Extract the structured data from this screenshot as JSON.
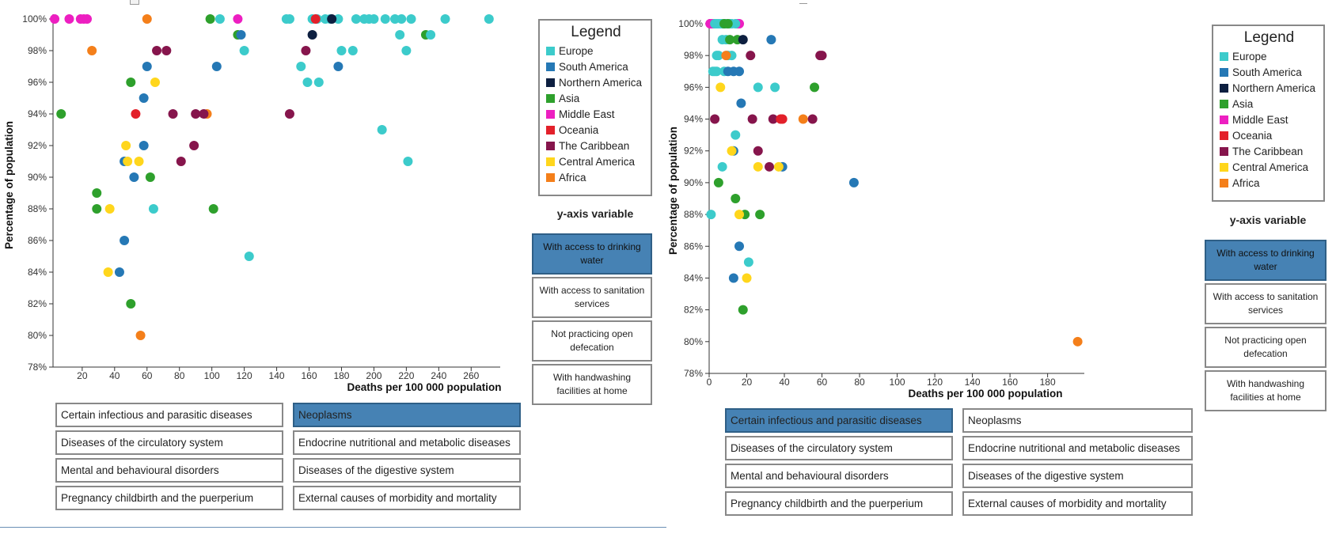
{
  "legend": {
    "title": "Legend",
    "regions": [
      {
        "name": "Europe",
        "color": "#3ccbcb"
      },
      {
        "name": "South America",
        "color": "#2578b5"
      },
      {
        "name": "Northern America",
        "color": "#0d1f40"
      },
      {
        "name": "Asia",
        "color": "#2ea02c"
      },
      {
        "name": "Middle East",
        "color": "#ed1fc1"
      },
      {
        "name": "Oceania",
        "color": "#e3202a"
      },
      {
        "name": "The Caribbean",
        "color": "#86154c"
      },
      {
        "name": "Central America",
        "color": "#ffd61c"
      },
      {
        "name": "Africa",
        "color": "#f47f1a"
      }
    ]
  },
  "yaxis_panel": {
    "heading": "y-axis variable",
    "options": [
      "With access to drinking water",
      "With access to sanitation services",
      "Not practicing open defecation",
      "With handwashing facilities at home"
    ]
  },
  "category_buttons": [
    "Certain infectious and parasitic diseases",
    "Neoplasms",
    "Diseases of the circulatory system",
    "Endocrine nutritional and metabolic diseases",
    "Mental and behavioural disorders",
    "Diseases of the digestive system",
    "Pregnancy childbirth and the puerperium",
    "External causes of morbidity and mortality"
  ],
  "panels": [
    {
      "selected_category": "Neoplasms",
      "selected_yvar": "With access to drinking water"
    },
    {
      "selected_category": "Certain infectious and parasitic diseases",
      "selected_yvar": "With access to drinking water"
    }
  ],
  "chart_data": [
    {
      "type": "scatter",
      "title": "",
      "xlabel": "Deaths per 100 000 population",
      "ylabel": "Percentage of population",
      "xlim": [
        2,
        275
      ],
      "ylim": [
        78,
        100
      ],
      "xticks": [
        20,
        40,
        60,
        80,
        100,
        120,
        140,
        160,
        180,
        200,
        220,
        240,
        260
      ],
      "yticks": [
        78,
        80,
        82,
        84,
        86,
        88,
        90,
        92,
        94,
        96,
        98,
        100
      ],
      "points": [
        {
          "region": "Middle East",
          "x": 3,
          "y": 100
        },
        {
          "region": "Middle East",
          "x": 12,
          "y": 100
        },
        {
          "region": "Middle East",
          "x": 19,
          "y": 100
        },
        {
          "region": "Middle East",
          "x": 21,
          "y": 100
        },
        {
          "region": "Middle East",
          "x": 23,
          "y": 100
        },
        {
          "region": "Middle East",
          "x": 116,
          "y": 100
        },
        {
          "region": "Africa",
          "x": 60,
          "y": 100
        },
        {
          "region": "Africa",
          "x": 26,
          "y": 98
        },
        {
          "region": "Africa",
          "x": 97,
          "y": 94
        },
        {
          "region": "Africa",
          "x": 56,
          "y": 80
        },
        {
          "region": "Asia",
          "x": 99,
          "y": 100
        },
        {
          "region": "Asia",
          "x": 116,
          "y": 99
        },
        {
          "region": "Asia",
          "x": 232,
          "y": 99
        },
        {
          "region": "Asia",
          "x": 50,
          "y": 96
        },
        {
          "region": "Asia",
          "x": 7,
          "y": 94
        },
        {
          "region": "Asia",
          "x": 62,
          "y": 90
        },
        {
          "region": "Asia",
          "x": 29,
          "y": 89
        },
        {
          "region": "Asia",
          "x": 29,
          "y": 88
        },
        {
          "region": "Asia",
          "x": 101,
          "y": 88
        },
        {
          "region": "Asia",
          "x": 50,
          "y": 82
        },
        {
          "region": "Europe",
          "x": 105,
          "y": 100
        },
        {
          "region": "Europe",
          "x": 146,
          "y": 100
        },
        {
          "region": "Europe",
          "x": 148,
          "y": 100
        },
        {
          "region": "Europe",
          "x": 162,
          "y": 100
        },
        {
          "region": "Europe",
          "x": 165,
          "y": 100
        },
        {
          "region": "Europe",
          "x": 170,
          "y": 100
        },
        {
          "region": "Europe",
          "x": 173,
          "y": 100
        },
        {
          "region": "Europe",
          "x": 178,
          "y": 100
        },
        {
          "region": "Europe",
          "x": 189,
          "y": 100
        },
        {
          "region": "Europe",
          "x": 194,
          "y": 100
        },
        {
          "region": "Europe",
          "x": 197,
          "y": 100
        },
        {
          "region": "Europe",
          "x": 200,
          "y": 100
        },
        {
          "region": "Europe",
          "x": 207,
          "y": 100
        },
        {
          "region": "Europe",
          "x": 213,
          "y": 100
        },
        {
          "region": "Europe",
          "x": 217,
          "y": 100
        },
        {
          "region": "Europe",
          "x": 223,
          "y": 100
        },
        {
          "region": "Europe",
          "x": 244,
          "y": 100
        },
        {
          "region": "Europe",
          "x": 271,
          "y": 100
        },
        {
          "region": "Europe",
          "x": 216,
          "y": 99
        },
        {
          "region": "Europe",
          "x": 235,
          "y": 99
        },
        {
          "region": "Europe",
          "x": 120,
          "y": 98
        },
        {
          "region": "Europe",
          "x": 180,
          "y": 98
        },
        {
          "region": "Europe",
          "x": 187,
          "y": 98
        },
        {
          "region": "Europe",
          "x": 220,
          "y": 98
        },
        {
          "region": "Europe",
          "x": 155,
          "y": 97
        },
        {
          "region": "Europe",
          "x": 159,
          "y": 96
        },
        {
          "region": "Europe",
          "x": 166,
          "y": 96
        },
        {
          "region": "Europe",
          "x": 205,
          "y": 93
        },
        {
          "region": "Europe",
          "x": 221,
          "y": 91
        },
        {
          "region": "Europe",
          "x": 64,
          "y": 88
        },
        {
          "region": "Europe",
          "x": 123,
          "y": 85
        },
        {
          "region": "Oceania",
          "x": 164,
          "y": 100
        },
        {
          "region": "Oceania",
          "x": 53,
          "y": 94
        },
        {
          "region": "Northern America",
          "x": 174,
          "y": 100
        },
        {
          "region": "Northern America",
          "x": 162,
          "y": 99
        },
        {
          "region": "South America",
          "x": 118,
          "y": 99
        },
        {
          "region": "South America",
          "x": 60,
          "y": 97
        },
        {
          "region": "South America",
          "x": 103,
          "y": 97
        },
        {
          "region": "South America",
          "x": 178,
          "y": 97
        },
        {
          "region": "South America",
          "x": 58,
          "y": 95
        },
        {
          "region": "South America",
          "x": 58,
          "y": 92
        },
        {
          "region": "South America",
          "x": 46,
          "y": 91
        },
        {
          "region": "South America",
          "x": 52,
          "y": 90
        },
        {
          "region": "South America",
          "x": 46,
          "y": 86
        },
        {
          "region": "South America",
          "x": 43,
          "y": 84
        },
        {
          "region": "The Caribbean",
          "x": 66,
          "y": 98
        },
        {
          "region": "The Caribbean",
          "x": 72,
          "y": 98
        },
        {
          "region": "The Caribbean",
          "x": 158,
          "y": 98
        },
        {
          "region": "The Caribbean",
          "x": 76,
          "y": 94
        },
        {
          "region": "The Caribbean",
          "x": 90,
          "y": 94
        },
        {
          "region": "The Caribbean",
          "x": 95,
          "y": 94
        },
        {
          "region": "The Caribbean",
          "x": 148,
          "y": 94
        },
        {
          "region": "The Caribbean",
          "x": 89,
          "y": 92
        },
        {
          "region": "The Caribbean",
          "x": 81,
          "y": 91
        },
        {
          "region": "Central America",
          "x": 65,
          "y": 96
        },
        {
          "region": "Central America",
          "x": 47,
          "y": 92
        },
        {
          "region": "Central America",
          "x": 48,
          "y": 91
        },
        {
          "region": "Central America",
          "x": 55,
          "y": 91
        },
        {
          "region": "Central America",
          "x": 37,
          "y": 88
        },
        {
          "region": "Central America",
          "x": 36,
          "y": 84
        }
      ]
    },
    {
      "type": "scatter",
      "title": "",
      "xlabel": "Deaths per 100 000 population",
      "ylabel": "Percentage of population",
      "xlim": [
        0,
        197
      ],
      "ylim": [
        78,
        100
      ],
      "xticks": [
        0,
        20,
        40,
        60,
        80,
        100,
        120,
        140,
        160,
        180
      ],
      "yticks": [
        78,
        80,
        82,
        84,
        86,
        88,
        90,
        92,
        94,
        96,
        98,
        100
      ],
      "points": [
        {
          "region": "Middle East",
          "x": 0.5,
          "y": 100
        },
        {
          "region": "Middle East",
          "x": 1.5,
          "y": 100
        },
        {
          "region": "Middle East",
          "x": 2.5,
          "y": 100
        },
        {
          "region": "Middle East",
          "x": 15,
          "y": 100
        },
        {
          "region": "Middle East",
          "x": 16,
          "y": 100
        },
        {
          "region": "Europe",
          "x": 3,
          "y": 100
        },
        {
          "region": "Europe",
          "x": 4,
          "y": 100
        },
        {
          "region": "Europe",
          "x": 5,
          "y": 100
        },
        {
          "region": "Europe",
          "x": 6,
          "y": 100
        },
        {
          "region": "Europe",
          "x": 7,
          "y": 100
        },
        {
          "region": "Europe",
          "x": 8,
          "y": 100
        },
        {
          "region": "Europe",
          "x": 9,
          "y": 100
        },
        {
          "region": "Europe",
          "x": 11,
          "y": 100
        },
        {
          "region": "Europe",
          "x": 12,
          "y": 100
        },
        {
          "region": "Europe",
          "x": 14,
          "y": 100
        },
        {
          "region": "Europe",
          "x": 7,
          "y": 99
        },
        {
          "region": "Europe",
          "x": 9,
          "y": 99
        },
        {
          "region": "Europe",
          "x": 4,
          "y": 98
        },
        {
          "region": "Europe",
          "x": 5,
          "y": 98
        },
        {
          "region": "Europe",
          "x": 10,
          "y": 98
        },
        {
          "region": "Europe",
          "x": 12,
          "y": 98
        },
        {
          "region": "Europe",
          "x": 2,
          "y": 97
        },
        {
          "region": "Europe",
          "x": 3,
          "y": 97
        },
        {
          "region": "Europe",
          "x": 4,
          "y": 97
        },
        {
          "region": "Europe",
          "x": 8,
          "y": 97
        },
        {
          "region": "Europe",
          "x": 26,
          "y": 96
        },
        {
          "region": "Europe",
          "x": 35,
          "y": 96
        },
        {
          "region": "Europe",
          "x": 14,
          "y": 93
        },
        {
          "region": "Europe",
          "x": 7,
          "y": 91
        },
        {
          "region": "Europe",
          "x": 1,
          "y": 88
        },
        {
          "region": "Europe",
          "x": 21,
          "y": 85
        },
        {
          "region": "Asia",
          "x": 8,
          "y": 100
        },
        {
          "region": "Asia",
          "x": 10,
          "y": 100
        },
        {
          "region": "Asia",
          "x": 11,
          "y": 99
        },
        {
          "region": "Asia",
          "x": 15,
          "y": 99
        },
        {
          "region": "Asia",
          "x": 56,
          "y": 96
        },
        {
          "region": "Asia",
          "x": 5,
          "y": 90
        },
        {
          "region": "Asia",
          "x": 14,
          "y": 89
        },
        {
          "region": "Asia",
          "x": 19,
          "y": 88
        },
        {
          "region": "Asia",
          "x": 27,
          "y": 88
        },
        {
          "region": "Asia",
          "x": 18,
          "y": 82
        },
        {
          "region": "Africa",
          "x": 9,
          "y": 98
        },
        {
          "region": "Africa",
          "x": 50,
          "y": 94
        },
        {
          "region": "Africa",
          "x": 196,
          "y": 80
        },
        {
          "region": "Northern America",
          "x": 18,
          "y": 99
        },
        {
          "region": "South America",
          "x": 33,
          "y": 99
        },
        {
          "region": "South America",
          "x": 10,
          "y": 97
        },
        {
          "region": "South America",
          "x": 13,
          "y": 97
        },
        {
          "region": "South America",
          "x": 16,
          "y": 97
        },
        {
          "region": "South America",
          "x": 17,
          "y": 95
        },
        {
          "region": "South America",
          "x": 13,
          "y": 92
        },
        {
          "region": "South America",
          "x": 39,
          "y": 91
        },
        {
          "region": "South America",
          "x": 77,
          "y": 90
        },
        {
          "region": "South America",
          "x": 16,
          "y": 86
        },
        {
          "region": "South America",
          "x": 13,
          "y": 84
        },
        {
          "region": "The Caribbean",
          "x": 22,
          "y": 98
        },
        {
          "region": "The Caribbean",
          "x": 59,
          "y": 98
        },
        {
          "region": "The Caribbean",
          "x": 60,
          "y": 98
        },
        {
          "region": "The Caribbean",
          "x": 3,
          "y": 94
        },
        {
          "region": "The Caribbean",
          "x": 23,
          "y": 94
        },
        {
          "region": "The Caribbean",
          "x": 34,
          "y": 94
        },
        {
          "region": "The Caribbean",
          "x": 55,
          "y": 94
        },
        {
          "region": "The Caribbean",
          "x": 26,
          "y": 92
        },
        {
          "region": "The Caribbean",
          "x": 32,
          "y": 91
        },
        {
          "region": "Oceania",
          "x": 38,
          "y": 94
        },
        {
          "region": "Oceania",
          "x": 39,
          "y": 94
        },
        {
          "region": "Central America",
          "x": 6,
          "y": 96
        },
        {
          "region": "Central America",
          "x": 12,
          "y": 92
        },
        {
          "region": "Central America",
          "x": 26,
          "y": 91
        },
        {
          "region": "Central America",
          "x": 37,
          "y": 91
        },
        {
          "region": "Central America",
          "x": 16,
          "y": 88
        },
        {
          "region": "Central America",
          "x": 20,
          "y": 84
        }
      ]
    }
  ]
}
